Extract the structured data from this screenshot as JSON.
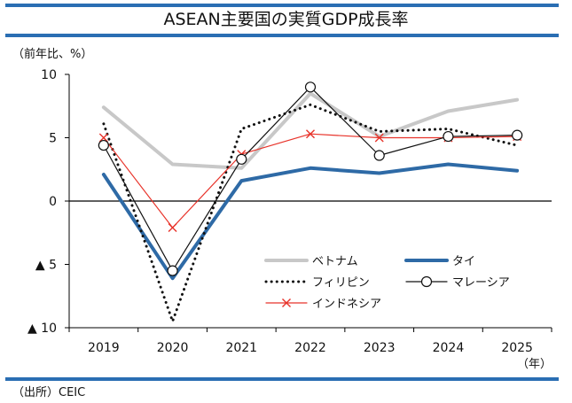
{
  "colors": {
    "rule": "#2a6eb3"
  },
  "chart_data": {
    "type": "line",
    "title": "ASEAN主要国の実質GDP成長率",
    "ylabel": "（前年比、%）",
    "xlabel": "（年）",
    "source": "（出所）CEIC",
    "categories": [
      "2019",
      "2020",
      "2021",
      "2022",
      "2023",
      "2024",
      "2025"
    ],
    "ylim": [
      -10,
      10
    ],
    "yticks": [
      {
        "value": 10,
        "label": "10"
      },
      {
        "value": 5,
        "label": "5"
      },
      {
        "value": 0,
        "label": "0"
      },
      {
        "value": -5,
        "label": "▲ 5"
      },
      {
        "value": -10,
        "label": "▲ 10"
      }
    ],
    "grid": false,
    "legend_position": "bottom-right",
    "series": [
      {
        "name": "ベトナム",
        "values": [
          7.4,
          2.9,
          2.6,
          8.5,
          5.1,
          7.1,
          8.0
        ],
        "color": "#c8c8c8",
        "style": "solid",
        "width": 4,
        "marker": "none"
      },
      {
        "name": "タイ",
        "values": [
          2.1,
          -6.1,
          1.6,
          2.6,
          2.2,
          2.9,
          2.4
        ],
        "color": "#2e6aa6",
        "style": "solid",
        "width": 4,
        "marker": "none"
      },
      {
        "name": "フィリピン",
        "values": [
          6.1,
          -9.5,
          5.7,
          7.6,
          5.5,
          5.7,
          4.4
        ],
        "color": "#111111",
        "style": "dotted",
        "width": 3,
        "marker": "none"
      },
      {
        "name": "マレーシア",
        "values": [
          4.4,
          -5.5,
          3.3,
          9.0,
          3.6,
          5.1,
          5.2
        ],
        "color": "#111111",
        "style": "solid",
        "width": 1.2,
        "marker": "circle"
      },
      {
        "name": "インドネシア",
        "values": [
          5.0,
          -2.1,
          3.7,
          5.3,
          5.0,
          5.0,
          5.1
        ],
        "color": "#e8332a",
        "style": "solid",
        "width": 1.2,
        "marker": "x"
      }
    ]
  }
}
